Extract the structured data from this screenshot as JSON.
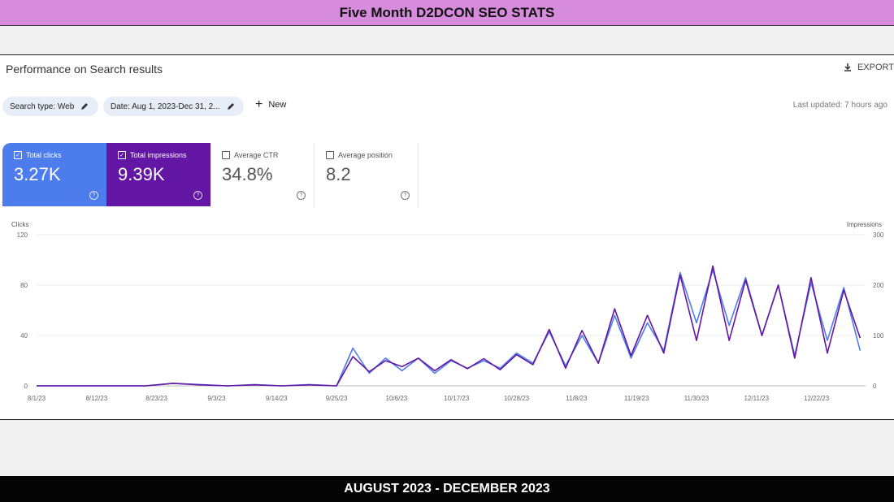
{
  "banner": {
    "title": "Five Month D2DCON SEO STATS",
    "footer": "AUGUST 2023 - DECEMBER 2023"
  },
  "panel": {
    "title": "Performance on Search results",
    "export_label": "EXPORT",
    "filters": [
      {
        "label": "Search type: Web"
      },
      {
        "label": "Date: Aug 1, 2023-Dec 31, 2..."
      }
    ],
    "new_label": "New",
    "last_updated": "Last updated: 7 hours ago"
  },
  "metrics": [
    {
      "label": "Total clicks",
      "value": "3.27K",
      "checked": true
    },
    {
      "label": "Total impressions",
      "value": "9.39K",
      "checked": true
    },
    {
      "label": "Average CTR",
      "value": "34.8%",
      "checked": false
    },
    {
      "label": "Average position",
      "value": "8.2",
      "checked": false
    }
  ],
  "colors": {
    "clicks": "#4d7ded",
    "impressions": "#6316a3",
    "banner": "#d78bdd"
  },
  "chart_data": {
    "type": "line",
    "x": [
      "8/1/23",
      "8/6/23",
      "8/11/23",
      "8/16/23",
      "8/21/23",
      "8/26/23",
      "8/31/23",
      "9/5/23",
      "9/10/23",
      "9/15/23",
      "9/20/23",
      "9/25/23",
      "9/28/23",
      "10/1/23",
      "10/4/23",
      "10/7/23",
      "10/10/23",
      "10/13/23",
      "10/16/23",
      "10/19/23",
      "10/22/23",
      "10/25/23",
      "10/28/23",
      "10/31/23",
      "11/3/23",
      "11/6/23",
      "11/9/23",
      "11/12/23",
      "11/15/23",
      "11/18/23",
      "11/21/23",
      "11/24/23",
      "11/27/23",
      "11/30/23",
      "12/3/23",
      "12/6/23",
      "12/9/23",
      "12/12/23",
      "12/15/23",
      "12/18/23",
      "12/21/23",
      "12/24/23",
      "12/27/23",
      "12/30/23"
    ],
    "series": [
      {
        "name": "Clicks",
        "axis": "left",
        "values": [
          0,
          0,
          0,
          0,
          0,
          2,
          1,
          0,
          1,
          0,
          1,
          0,
          30,
          10,
          22,
          12,
          22,
          10,
          20,
          14,
          20,
          14,
          26,
          18,
          43,
          16,
          40,
          18,
          56,
          22,
          50,
          28,
          90,
          50,
          92,
          48,
          86,
          40,
          80,
          24,
          82,
          36,
          78,
          28
        ]
      },
      {
        "name": "Impressions",
        "axis": "right",
        "values": [
          0,
          0,
          0,
          0,
          0,
          5,
          2,
          0,
          2,
          0,
          2,
          0,
          58,
          28,
          50,
          38,
          55,
          30,
          52,
          34,
          54,
          32,
          62,
          42,
          112,
          35,
          110,
          45,
          153,
          60,
          140,
          65,
          220,
          90,
          238,
          90,
          210,
          100,
          200,
          55,
          215,
          65,
          190,
          95
        ]
      }
    ],
    "x_ticks": [
      "8/1/23",
      "8/12/23",
      "8/23/23",
      "9/3/23",
      "9/14/23",
      "9/25/23",
      "10/6/23",
      "10/17/23",
      "10/28/23",
      "11/8/23",
      "11/19/23",
      "11/30/23",
      "12/11/23",
      "12/22/23"
    ],
    "ylabel": "Clicks",
    "ylabel_right": "Impressions",
    "ylim": [
      0,
      120
    ],
    "ylim_right": [
      0,
      300
    ],
    "y_ticks": [
      0,
      40,
      80,
      120
    ],
    "y_ticks_right": [
      0,
      100,
      200,
      300
    ],
    "grid": true
  }
}
